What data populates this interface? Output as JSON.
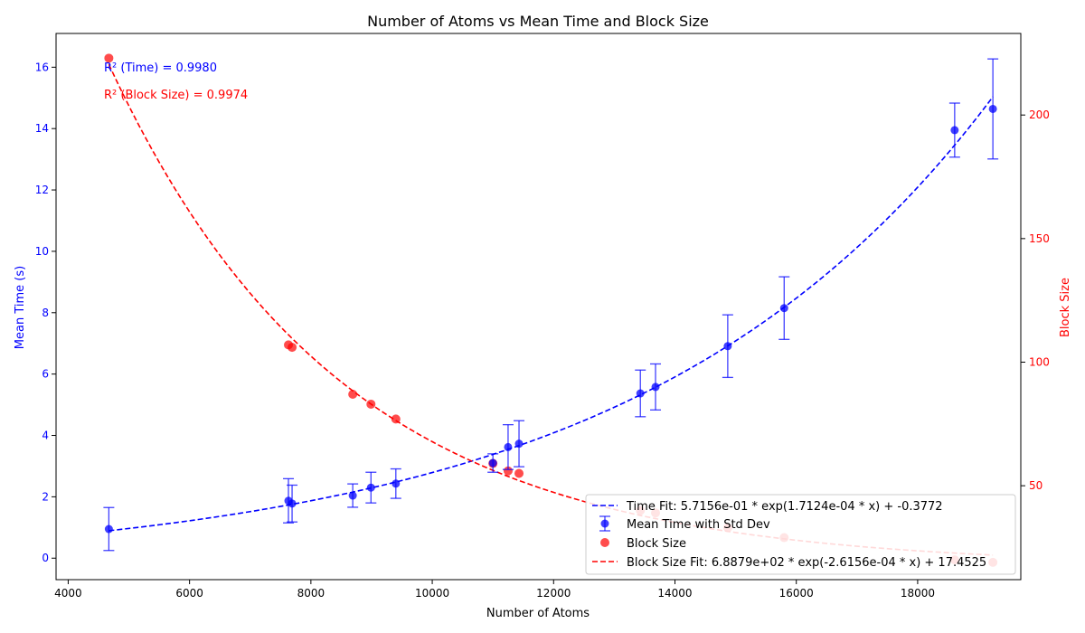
{
  "chart_data": {
    "type": "scatter",
    "title": "Number of Atoms vs Mean Time and Block Size",
    "xlabel": "Number of Atoms",
    "ylabel_left": "Mean Time (s)",
    "ylabel_right": "Block Size",
    "xlim": [
      3800,
      19700
    ],
    "ylim_left": [
      -0.7,
      17.1
    ],
    "ylim_right": [
      12,
      233
    ],
    "xticks": [
      4000,
      6000,
      8000,
      10000,
      12000,
      14000,
      16000,
      18000
    ],
    "yticks_left": [
      0,
      2,
      4,
      6,
      8,
      10,
      12,
      14,
      16
    ],
    "yticks_right": [
      50,
      100,
      150,
      200
    ],
    "grid": false,
    "legend_position": "lower-right",
    "colors": {
      "time": "#0000ff",
      "block": "#ff0000"
    },
    "series": [
      {
        "name": "Mean Time with Std Dev",
        "axis": "left",
        "x": [
          4670,
          7630,
          7690,
          8690,
          8990,
          9400,
          11000,
          11250,
          11430,
          13430,
          13680,
          14870,
          15800,
          18610,
          19240
        ],
        "y": [
          0.95,
          1.87,
          1.78,
          2.04,
          2.3,
          2.43,
          3.1,
          3.62,
          3.73,
          5.37,
          5.58,
          6.91,
          8.15,
          13.95,
          14.64
        ],
        "err": [
          0.7,
          0.72,
          0.6,
          0.38,
          0.5,
          0.48,
          0.3,
          0.73,
          0.75,
          0.76,
          0.75,
          1.02,
          1.02,
          0.88,
          1.63
        ]
      },
      {
        "name": "Block Size",
        "axis": "right",
        "x": [
          4670,
          7630,
          7690,
          8690,
          8990,
          9400,
          11000,
          11250,
          11430,
          13430,
          13680,
          14870,
          15800,
          18610,
          19240
        ],
        "y": [
          223,
          107,
          106,
          87,
          83,
          77,
          59,
          56,
          55,
          40,
          39,
          33,
          29,
          20,
          19
        ]
      }
    ],
    "fits": [
      {
        "name": "Time Fit: 5.7156e-01 * exp(1.7124e-04 * x) + -0.3772",
        "axis": "left",
        "a": 0.57156,
        "b": 0.00017124,
        "c": -0.3772,
        "x_range": [
          4670,
          19240
        ]
      },
      {
        "name": "Block Size Fit: 6.8879e+02 * exp(-2.6156e-04 * x) + 17.4525",
        "axis": "right",
        "a": 688.79,
        "b": -0.00026156,
        "c": 17.4525,
        "x_range": [
          4670,
          19240
        ]
      }
    ],
    "annotations": [
      {
        "text": "R² (Time) = 0.9980",
        "color": "#0000ff"
      },
      {
        "text": "R² (Block Size) = 0.9974",
        "color": "#ff0000"
      }
    ]
  }
}
